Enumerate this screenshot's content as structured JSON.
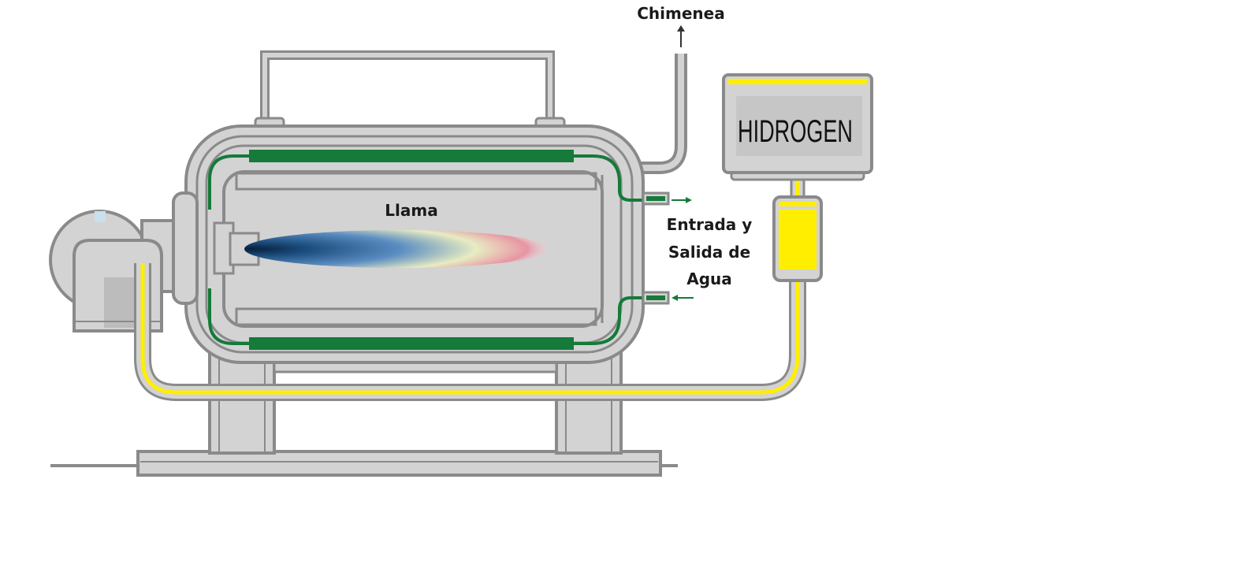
{
  "labels": {
    "chimney": "Chimenea",
    "flame": "Llama",
    "water_line1": "Entrada y",
    "water_line2": "Salida de",
    "water_line3": "Agua",
    "tank": "HIDROGEN"
  },
  "colors": {
    "steel": "#d3d3d3",
    "outline": "#8a8a8a",
    "water": "#157a3a",
    "hydrogen": "#ffee00",
    "flame_core": "#0d3a66",
    "flame_mid": "#4f86c0",
    "flame_tip": "#e58a9a"
  }
}
